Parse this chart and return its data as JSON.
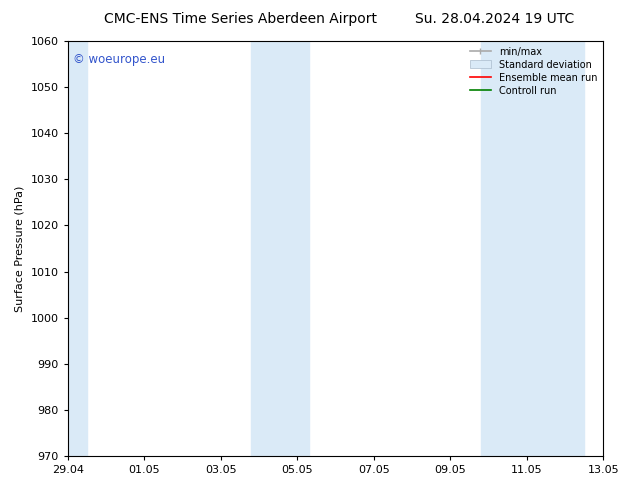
{
  "title_left": "CMC-ENS Time Series Aberdeen Airport",
  "title_right": "Su. 28.04.2024 19 UTC",
  "ylabel": "Surface Pressure (hPa)",
  "ylim": [
    970,
    1060
  ],
  "yticks": [
    970,
    980,
    990,
    1000,
    1010,
    1020,
    1030,
    1040,
    1050,
    1060
  ],
  "xlim_start": 0,
  "xlim_end": 14,
  "xtick_labels": [
    "29.04",
    "01.05",
    "03.05",
    "05.05",
    "07.05",
    "09.05",
    "11.05",
    "13.05"
  ],
  "xtick_positions": [
    0,
    2,
    4,
    6,
    8,
    10,
    12,
    14
  ],
  "shaded_regions": [
    {
      "x_start": 0.0,
      "x_end": 0.5
    },
    {
      "x_start": 4.8,
      "x_end": 6.3
    },
    {
      "x_start": 10.8,
      "x_end": 13.5
    }
  ],
  "shaded_color": "#daeaf7",
  "watermark_text": "© woeurope.eu",
  "watermark_color": "#3355cc",
  "bg_color": "#ffffff",
  "title_fontsize": 10,
  "label_fontsize": 8,
  "tick_fontsize": 8
}
